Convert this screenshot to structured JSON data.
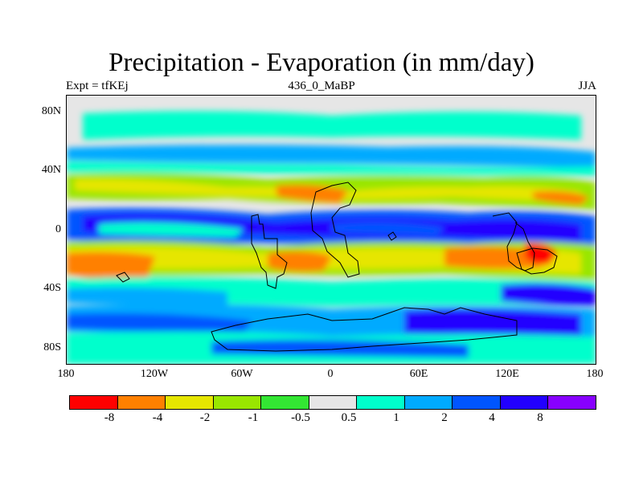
{
  "title": "Precipitation - Evaporation (in mm/day)",
  "left_subtitle": "Expt = tfKEj",
  "center_subtitle": "436_0_MaBP",
  "right_subtitle": "JJA",
  "axes": {
    "y_ticks": [
      "80N",
      "40N",
      "0",
      "40S",
      "80S"
    ],
    "x_ticks": [
      "180",
      "120W",
      "60W",
      "0",
      "60E",
      "120E",
      "180"
    ]
  },
  "colorbar": {
    "labels": [
      "-8",
      "-4",
      "-2",
      "-1",
      "-0.5",
      "0.5",
      "1",
      "2",
      "4",
      "8"
    ],
    "colors": [
      "#ff0000",
      "#ff8000",
      "#e6e600",
      "#99e600",
      "#33e633",
      "#e6e6e6",
      "#00ffcc",
      "#00aaff",
      "#0055ff",
      "#2200ff",
      "#8800ff"
    ]
  },
  "colors": {
    "background": "#e6e6e6",
    "coastline": "#000000"
  }
}
